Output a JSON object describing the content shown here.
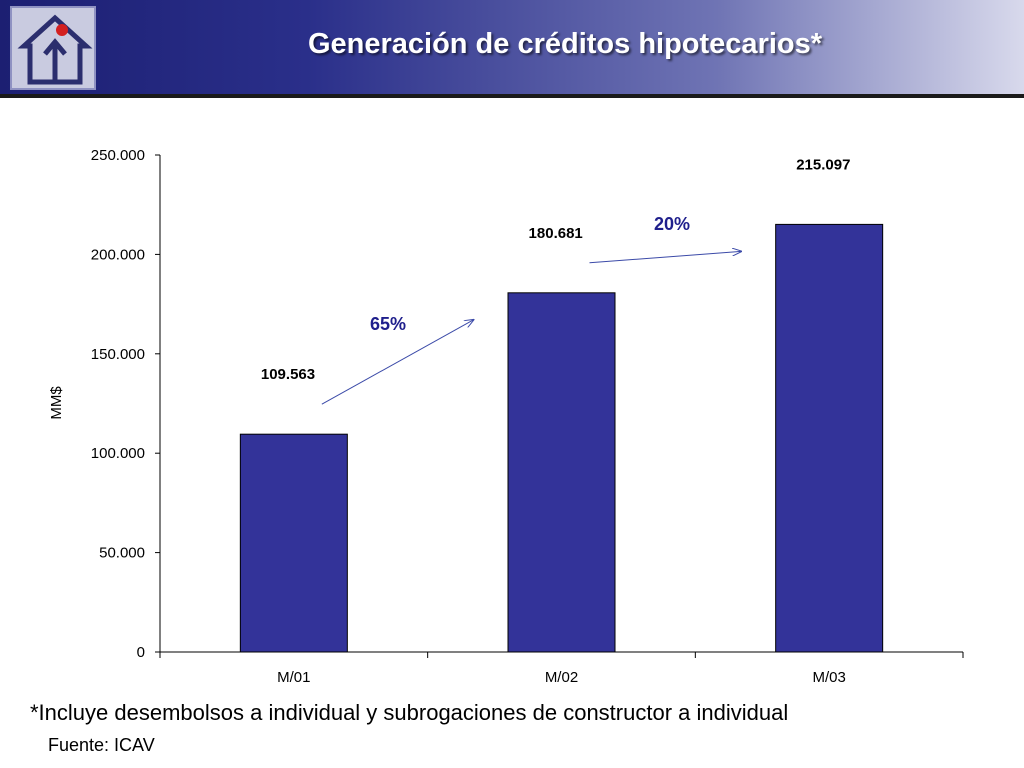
{
  "header": {
    "title": "Generación de créditos hipotecarios*"
  },
  "logo": {
    "icon": "house-with-arrow-logo"
  },
  "chart_data": {
    "type": "bar",
    "categories": [
      "M/01",
      "M/02",
      "M/03"
    ],
    "values": [
      109563,
      180681,
      215097
    ],
    "value_labels": [
      "109.563",
      "180.681",
      "215.097"
    ],
    "ylabel": "MM$",
    "ylim": [
      0,
      250000
    ],
    "yticks": [
      0,
      50000,
      100000,
      150000,
      200000,
      250000
    ],
    "ytick_labels": [
      "0",
      "50.000",
      "100.000",
      "150.000",
      "200.000",
      "250.000"
    ],
    "grid": false,
    "bar_color": "#333399",
    "annotations": [
      {
        "text": "65%",
        "from": "M/01",
        "to": "M/02"
      },
      {
        "text": "20%",
        "from": "M/02",
        "to": "M/03"
      }
    ]
  },
  "footer": {
    "note": "*Incluye desembolsos a individual y subrogaciones de constructor a individual",
    "source": "Fuente: ICAV"
  }
}
